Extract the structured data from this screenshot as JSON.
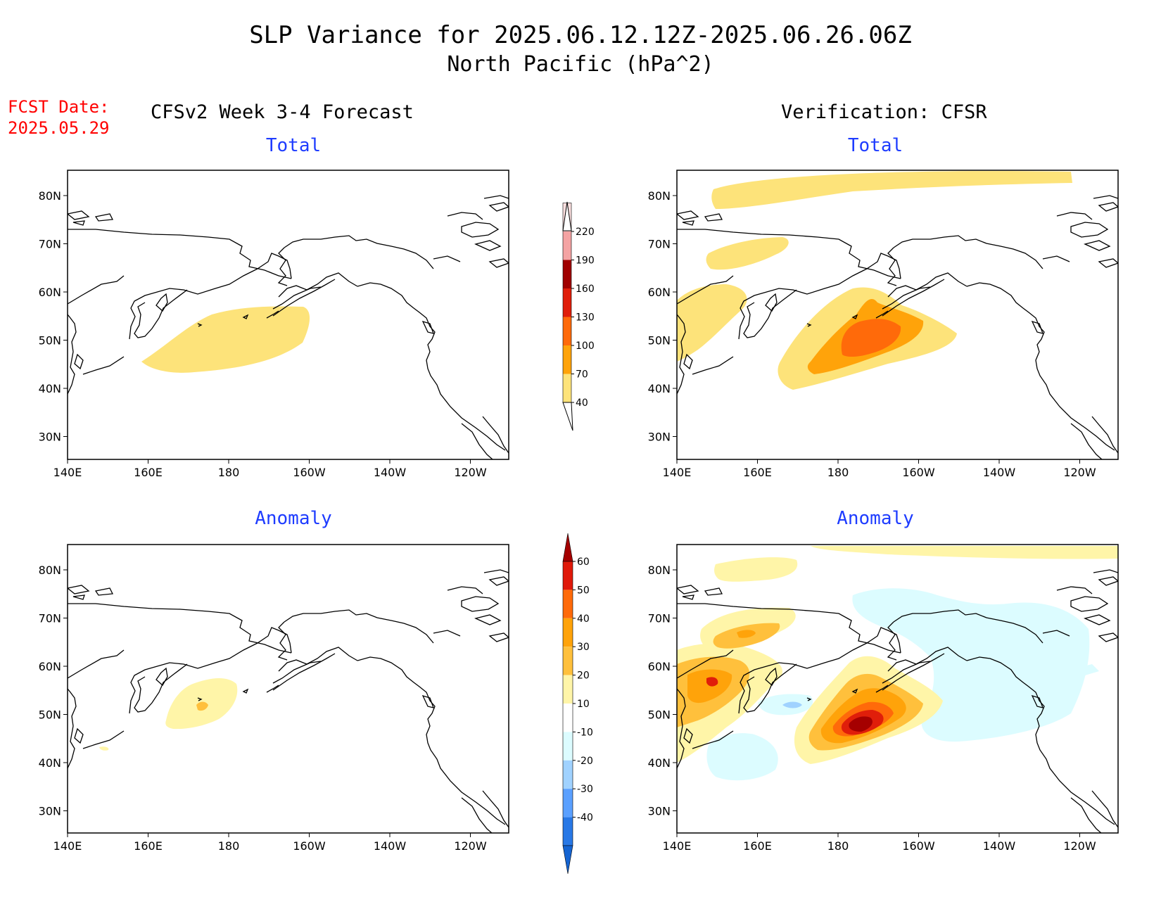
{
  "header": {
    "title_line1": "SLP Variance for 2025.06.12.12Z-2025.06.26.06Z",
    "title_line2": "North Pacific (hPa^2)",
    "fcst_label": "FCST Date:",
    "fcst_date": "2025.05.29",
    "left_caption": "CFSv2 Week 3-4 Forecast",
    "right_caption": "Verification: CFSR"
  },
  "panels": {
    "fcst_total": {
      "title": "Total"
    },
    "ver_total": {
      "title": "Total"
    },
    "fcst_anom": {
      "title": "Anomaly"
    },
    "ver_anom": {
      "title": "Anomaly"
    }
  },
  "axes": {
    "lon_ticks": [
      "140E",
      "160E",
      "180",
      "160W",
      "140W",
      "120W"
    ],
    "lat_ticks": [
      "80N",
      "70N",
      "60N",
      "50N",
      "40N",
      "30N"
    ]
  },
  "colorbar_total": {
    "levels": [
      "40",
      "70",
      "100",
      "130",
      "160",
      "190",
      "220"
    ],
    "colors": [
      "#fde37a",
      "#ffa30a",
      "#ff6a0a",
      "#e01e0a",
      "#a00000",
      "#f4a3a3",
      "#fde0e0"
    ]
  },
  "colorbar_anomaly": {
    "levels": [
      "60",
      "50",
      "40",
      "30",
      "20",
      "10",
      "-10",
      "-20",
      "-30",
      "-40"
    ],
    "colors_top_down": [
      "#a50000",
      "#e0190a",
      "#ff6a0a",
      "#ffa30a",
      "#ffc03c",
      "#fff5a8",
      "#ffffff",
      "#dcfcff",
      "#a0d2ff",
      "#5aa0ff",
      "#2878e6",
      "#1464d2"
    ]
  }
}
